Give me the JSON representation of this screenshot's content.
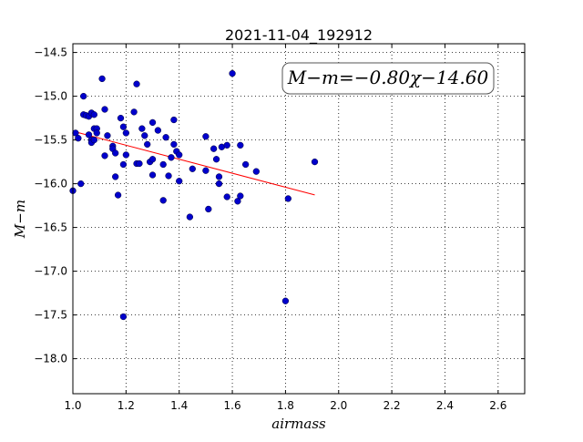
{
  "chart_data": {
    "type": "scatter",
    "title": "2021-11-04_192912",
    "xlabel": "airmass",
    "ylabel": "M−m",
    "xlim": [
      1.0,
      2.7
    ],
    "ylim": [
      -18.4,
      -14.4
    ],
    "y_inverted": true,
    "grid": true,
    "grid_style": "dotted",
    "x_ticks": [
      1.0,
      1.2,
      1.4,
      1.6,
      1.8,
      2.0,
      2.2,
      2.4,
      2.6
    ],
    "x_tick_labels": [
      "1.0",
      "1.2",
      "1.4",
      "1.6",
      "1.8",
      "2.0",
      "2.2",
      "2.4",
      "2.6"
    ],
    "y_ticks": [
      -14.5,
      -15.0,
      -15.5,
      -16.0,
      -16.5,
      -17.0,
      -17.5,
      -18.0
    ],
    "y_tick_labels": [
      "−14.5",
      "−15.0",
      "−15.5",
      "−16.0",
      "−16.5",
      "−17.0",
      "−17.5",
      "−18.0"
    ],
    "annotation": "M−m=−0.80χ−14.60",
    "fit": {
      "slope": -0.8,
      "intercept": -14.6,
      "x_range": [
        1.01,
        1.91
      ],
      "color": "#ff0000"
    },
    "series": [
      {
        "color": "#0000cc",
        "points": [
          [
            1.0,
            -16.08
          ],
          [
            1.01,
            -15.42
          ],
          [
            1.02,
            -15.48
          ],
          [
            1.03,
            -16.0
          ],
          [
            1.04,
            -15.0
          ],
          [
            1.04,
            -15.21
          ],
          [
            1.05,
            -15.22
          ],
          [
            1.06,
            -15.23
          ],
          [
            1.06,
            -15.44
          ],
          [
            1.07,
            -15.19
          ],
          [
            1.07,
            -15.5
          ],
          [
            1.07,
            -15.53
          ],
          [
            1.08,
            -15.21
          ],
          [
            1.08,
            -15.37
          ],
          [
            1.08,
            -15.5
          ],
          [
            1.09,
            -15.37
          ],
          [
            1.09,
            -15.42
          ],
          [
            1.11,
            -14.8
          ],
          [
            1.12,
            -15.15
          ],
          [
            1.12,
            -15.68
          ],
          [
            1.13,
            -15.45
          ],
          [
            1.15,
            -15.57
          ],
          [
            1.15,
            -15.6
          ],
          [
            1.16,
            -15.65
          ],
          [
            1.16,
            -15.92
          ],
          [
            1.17,
            -16.13
          ],
          [
            1.18,
            -15.25
          ],
          [
            1.19,
            -15.35
          ],
          [
            1.19,
            -15.78
          ],
          [
            1.2,
            -15.67
          ],
          [
            1.2,
            -15.42
          ],
          [
            1.19,
            -17.52
          ],
          [
            1.23,
            -15.18
          ],
          [
            1.24,
            -14.86
          ],
          [
            1.24,
            -15.77
          ],
          [
            1.25,
            -15.77
          ],
          [
            1.26,
            -15.37
          ],
          [
            1.27,
            -15.45
          ],
          [
            1.28,
            -15.55
          ],
          [
            1.29,
            -15.75
          ],
          [
            1.3,
            -15.72
          ],
          [
            1.3,
            -15.3
          ],
          [
            1.3,
            -15.9
          ],
          [
            1.32,
            -15.39
          ],
          [
            1.34,
            -16.19
          ],
          [
            1.34,
            -15.78
          ],
          [
            1.35,
            -15.47
          ],
          [
            1.36,
            -15.91
          ],
          [
            1.37,
            -15.7
          ],
          [
            1.38,
            -15.27
          ],
          [
            1.38,
            -15.55
          ],
          [
            1.39,
            -15.63
          ],
          [
            1.4,
            -15.67
          ],
          [
            1.4,
            -15.97
          ],
          [
            1.44,
            -16.38
          ],
          [
            1.45,
            -15.83
          ],
          [
            1.5,
            -15.46
          ],
          [
            1.5,
            -15.85
          ],
          [
            1.51,
            -16.29
          ],
          [
            1.53,
            -15.6
          ],
          [
            1.54,
            -15.72
          ],
          [
            1.55,
            -15.92
          ],
          [
            1.55,
            -16.0
          ],
          [
            1.56,
            -15.58
          ],
          [
            1.58,
            -15.56
          ],
          [
            1.58,
            -16.15
          ],
          [
            1.6,
            -14.74
          ],
          [
            1.62,
            -16.2
          ],
          [
            1.63,
            -15.56
          ],
          [
            1.63,
            -16.14
          ],
          [
            1.65,
            -15.78
          ],
          [
            1.69,
            -15.86
          ],
          [
            1.8,
            -17.34
          ],
          [
            1.81,
            -16.17
          ],
          [
            1.91,
            -15.75
          ]
        ]
      }
    ]
  }
}
